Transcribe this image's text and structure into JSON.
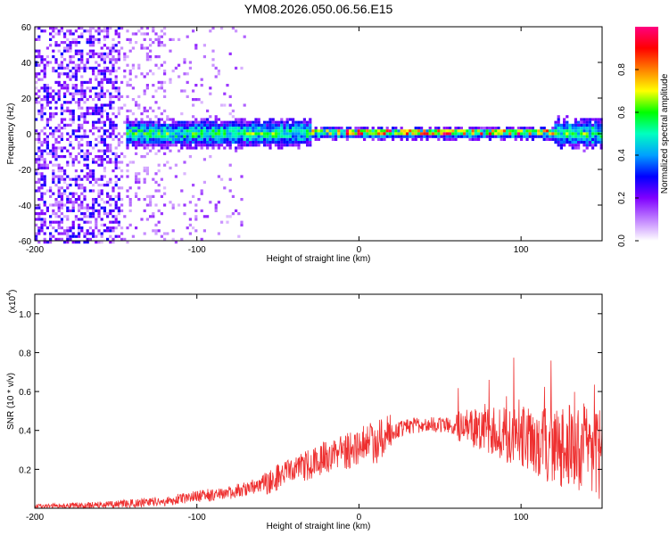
{
  "title": "YM08.2026.050.06.56.E15",
  "chart_data": [
    {
      "type": "heatmap",
      "name": "spectrogram",
      "xlabel": "Height of straight line (km)",
      "ylabel": "Frequency (Hz)",
      "xlim": [
        -200,
        150
      ],
      "ylim": [
        -60,
        60
      ],
      "xticks": [
        -200,
        -100,
        0,
        100
      ],
      "xtick_labels": [
        "-200",
        "-100",
        "0",
        "100"
      ],
      "yticks": [
        -60,
        -40,
        -20,
        0,
        20,
        40,
        60
      ],
      "ytick_labels": [
        "-60",
        "-40",
        "-20",
        "0",
        "20",
        "40",
        "60"
      ],
      "colorbar": {
        "label": "Normalized spectral amplitude",
        "range": [
          0,
          1
        ],
        "ticks": [
          0.0,
          0.2,
          0.4,
          0.6,
          0.8
        ],
        "tick_labels": [
          "0.0",
          "0.2",
          "0.4",
          "0.6",
          "0.8"
        ],
        "colormap": [
          "#ffffff",
          "#c080ff",
          "#8000ff",
          "#0000ff",
          "#00a0ff",
          "#00ffc0",
          "#00ff00",
          "#ffff00",
          "#ff8000",
          "#ff0000",
          "#ff0080"
        ]
      },
      "band": {
        "center_hz": 1,
        "half_width_hz": 5,
        "x_start": -145,
        "x_end": 150
      }
    },
    {
      "type": "line",
      "name": "snr",
      "xlabel": "Height of straight line (km)",
      "ylabel": "SNR (10 * v/v)",
      "scale_label": "(x10",
      "scale_exp": "4",
      "xlim": [
        -200,
        150
      ],
      "ylim": [
        0,
        1.1
      ],
      "xticks": [
        -200,
        -100,
        0,
        100
      ],
      "xtick_labels": [
        "-200",
        "-100",
        "0",
        "100"
      ],
      "yticks": [
        0.2,
        0.4,
        0.6,
        0.8,
        1.0
      ],
      "ytick_labels": [
        "0.2",
        "0.4",
        "0.6",
        "0.8",
        "1.0"
      ],
      "color": "#ee3030",
      "trend": {
        "x": [
          -200,
          -170,
          -150,
          -120,
          -100,
          -80,
          -60,
          -40,
          -20,
          0,
          10,
          20,
          30,
          40,
          50,
          60,
          80,
          100,
          120,
          150
        ],
        "y": [
          0.01,
          0.015,
          0.02,
          0.035,
          0.06,
          0.08,
          0.12,
          0.2,
          0.26,
          0.32,
          0.34,
          0.39,
          0.42,
          0.43,
          0.43,
          0.42,
          0.4,
          0.36,
          0.32,
          0.3
        ]
      }
    }
  ]
}
